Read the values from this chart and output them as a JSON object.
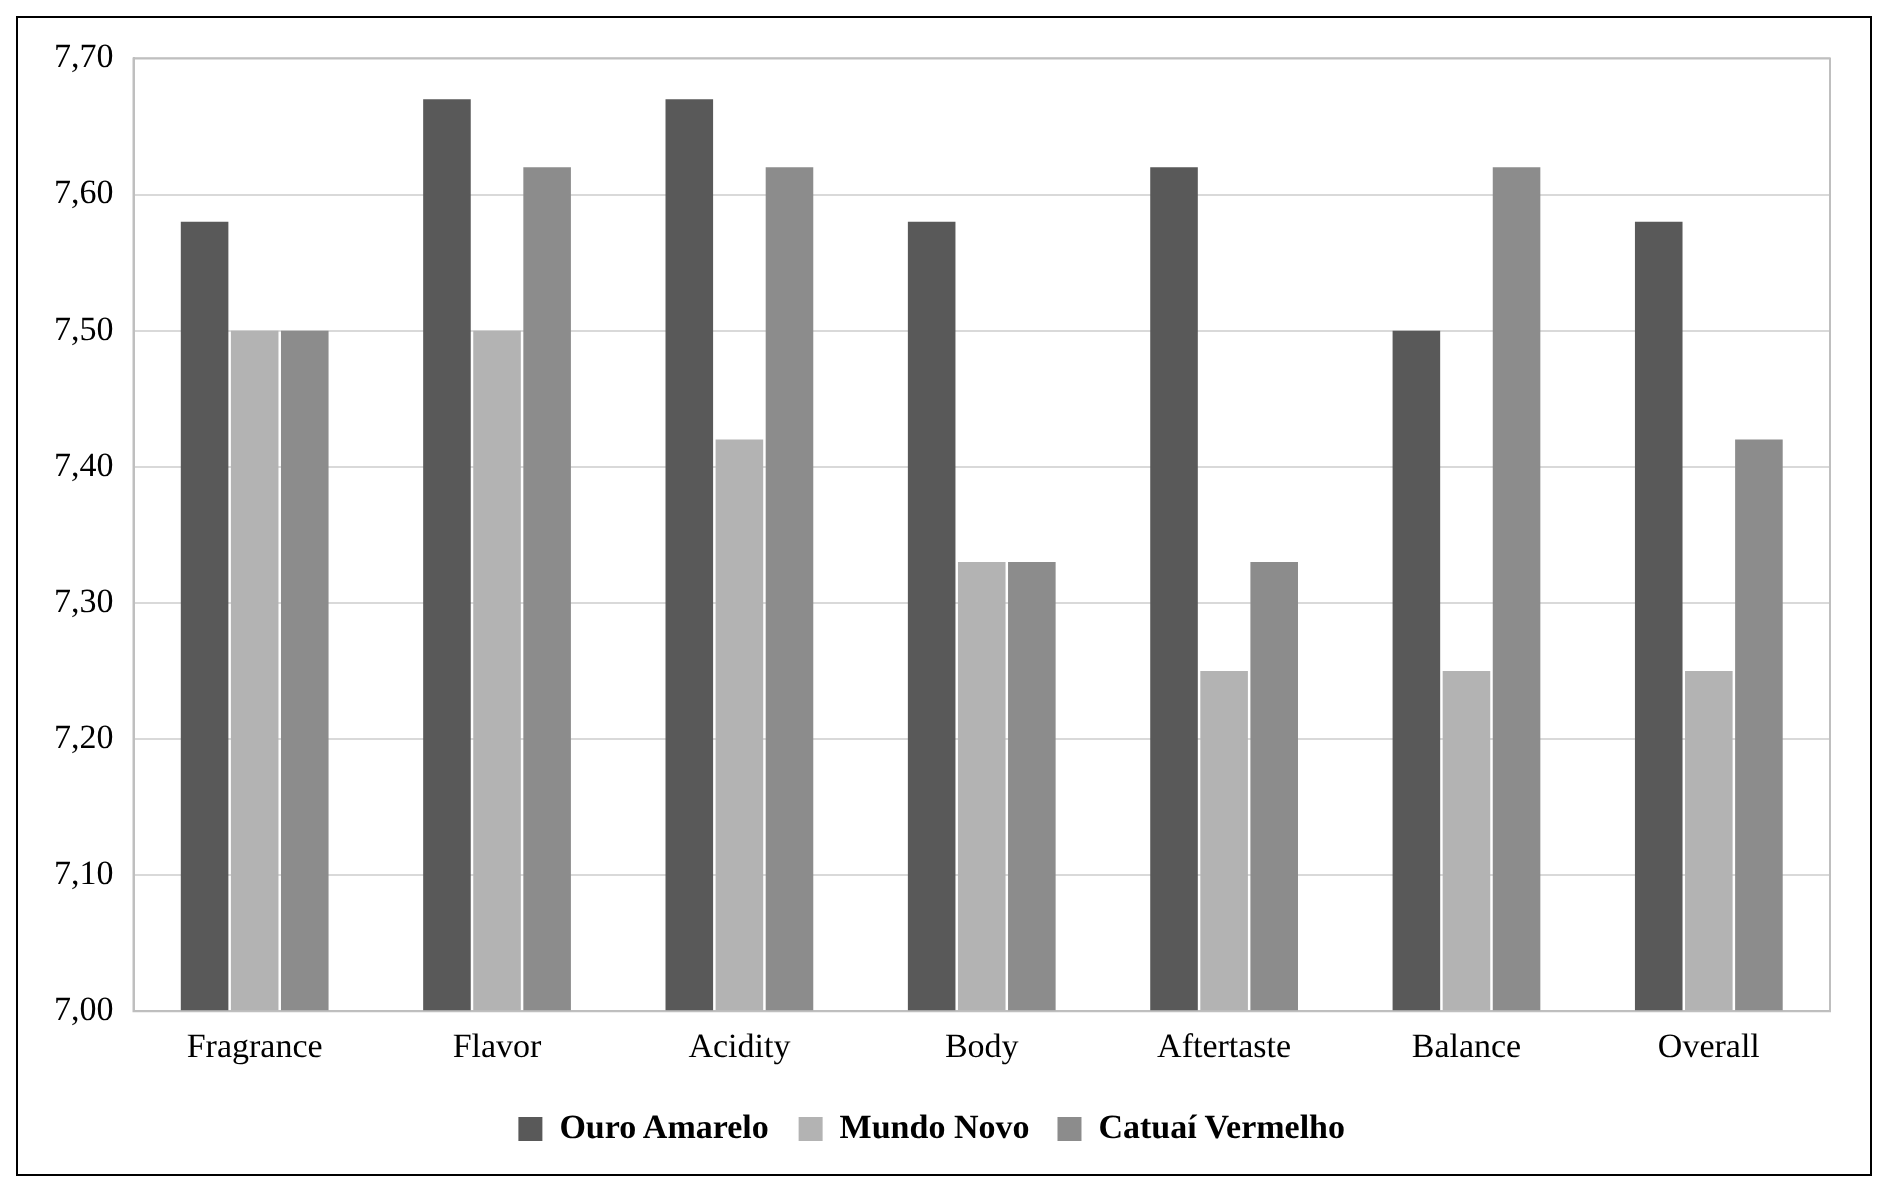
{
  "chart_data": {
    "type": "bar",
    "categories": [
      "Fragrance",
      "Flavor",
      "Acidity",
      "Body",
      "Aftertaste",
      "Balance",
      "Overall"
    ],
    "series": [
      {
        "name": "Ouro Amarelo",
        "color": "#595959",
        "values": [
          7.58,
          7.67,
          7.67,
          7.58,
          7.62,
          7.5,
          7.58
        ]
      },
      {
        "name": "Mundo Novo",
        "color": "#b3b3b3",
        "values": [
          7.5,
          7.5,
          7.42,
          7.33,
          7.25,
          7.25,
          7.25
        ]
      },
      {
        "name": "Catuaí Vermelho",
        "color": "#8c8c8c",
        "values": [
          7.5,
          7.62,
          7.62,
          7.33,
          7.33,
          7.62,
          7.42
        ]
      }
    ],
    "ylim": [
      7,
      7.7
    ],
    "yticks": [
      {
        "value": 7,
        "label": "7,00"
      },
      {
        "value": 7.1,
        "label": "7,10"
      },
      {
        "value": 7.2,
        "label": "7,20"
      },
      {
        "value": 7.3,
        "label": "7,30"
      },
      {
        "value": 7.4,
        "label": "7,40"
      },
      {
        "value": 7.5,
        "label": "7,50"
      },
      {
        "value": 7.6,
        "label": "7,60"
      },
      {
        "value": 7.7,
        "label": "7,70"
      }
    ],
    "grid": "y",
    "legend": "bottom"
  }
}
